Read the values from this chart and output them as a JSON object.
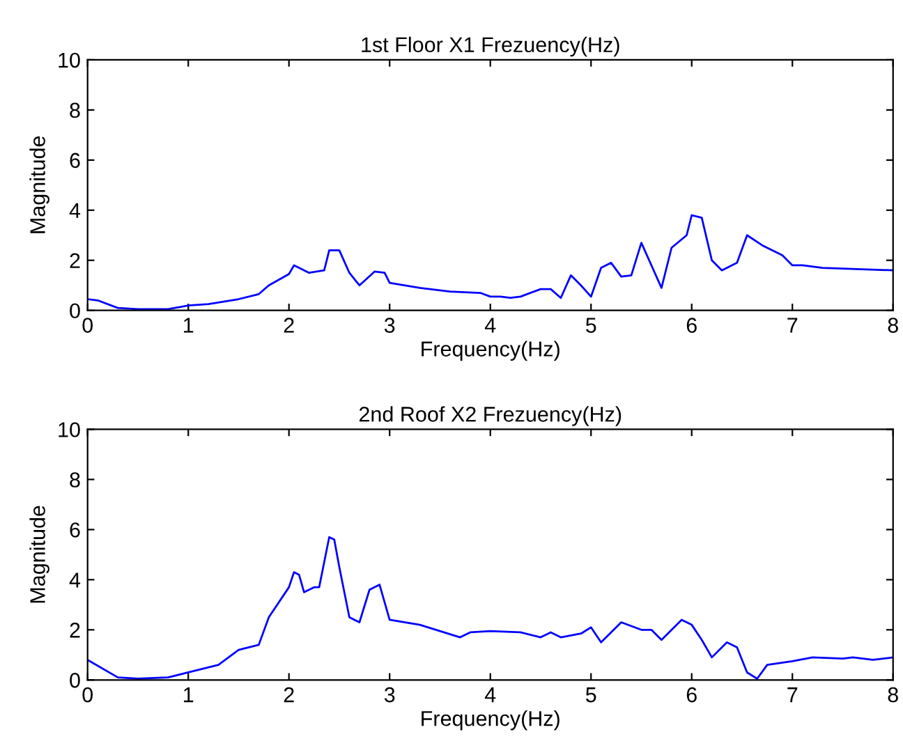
{
  "chart_data": [
    {
      "type": "line",
      "title": "1st Floor X1 Frezuency(Hz)",
      "xlabel": "Frequency(Hz)",
      "ylabel": "Magnitude",
      "xlim": [
        0,
        8
      ],
      "ylim": [
        0,
        10
      ],
      "xticks": [
        0,
        1,
        2,
        3,
        4,
        5,
        6,
        7,
        8
      ],
      "yticks": [
        0,
        2,
        4,
        6,
        8,
        10
      ],
      "grid": false,
      "series": [
        {
          "color": "#0000ff",
          "x": [
            0,
            0.1,
            0.3,
            0.5,
            0.8,
            1.0,
            1.2,
            1.5,
            1.7,
            1.8,
            2.0,
            2.05,
            2.1,
            2.2,
            2.35,
            2.4,
            2.5,
            2.6,
            2.7,
            2.85,
            2.95,
            3.0,
            3.3,
            3.6,
            3.9,
            4.0,
            4.1,
            4.2,
            4.3,
            4.5,
            4.6,
            4.7,
            4.8,
            4.9,
            5.0,
            5.1,
            5.2,
            5.3,
            5.4,
            5.5,
            5.6,
            5.7,
            5.8,
            5.95,
            6.0,
            6.1,
            6.2,
            6.3,
            6.45,
            6.55,
            6.7,
            6.9,
            7.0,
            7.1,
            7.3,
            8.0
          ],
          "values": [
            0.45,
            0.4,
            0.1,
            0.05,
            0.05,
            0.2,
            0.25,
            0.45,
            0.65,
            1.0,
            1.45,
            1.8,
            1.7,
            1.5,
            1.6,
            2.4,
            2.4,
            1.5,
            1.0,
            1.55,
            1.5,
            1.1,
            0.9,
            0.75,
            0.7,
            0.55,
            0.55,
            0.5,
            0.55,
            0.85,
            0.85,
            0.5,
            1.4,
            1.0,
            0.55,
            1.7,
            1.9,
            1.35,
            1.4,
            2.7,
            1.8,
            0.9,
            2.5,
            3.0,
            3.8,
            3.7,
            2.0,
            1.6,
            1.9,
            3.0,
            2.6,
            2.2,
            1.8,
            1.8,
            1.7,
            1.6
          ]
        }
      ]
    },
    {
      "type": "line",
      "title": "2nd Roof X2 Frezuency(Hz)",
      "xlabel": "Frequency(Hz)",
      "ylabel": "Magnitude",
      "xlim": [
        0,
        8
      ],
      "ylim": [
        0,
        10
      ],
      "xticks": [
        0,
        1,
        2,
        3,
        4,
        5,
        6,
        7,
        8
      ],
      "yticks": [
        0,
        2,
        4,
        6,
        8,
        10
      ],
      "grid": false,
      "series": [
        {
          "color": "#0000ff",
          "x": [
            0,
            0.3,
            0.5,
            0.8,
            1.0,
            1.3,
            1.5,
            1.7,
            1.8,
            2.0,
            2.05,
            2.1,
            2.15,
            2.25,
            2.3,
            2.4,
            2.45,
            2.5,
            2.6,
            2.7,
            2.8,
            2.9,
            3.0,
            3.3,
            3.5,
            3.7,
            3.8,
            4.0,
            4.3,
            4.5,
            4.6,
            4.7,
            4.9,
            5.0,
            5.1,
            5.3,
            5.5,
            5.6,
            5.7,
            5.9,
            6.0,
            6.1,
            6.2,
            6.35,
            6.45,
            6.55,
            6.65,
            6.75,
            7.0,
            7.2,
            7.5,
            7.6,
            7.8,
            8.0
          ],
          "values": [
            0.8,
            0.1,
            0.05,
            0.1,
            0.3,
            0.6,
            1.2,
            1.4,
            2.5,
            3.7,
            4.3,
            4.2,
            3.5,
            3.7,
            3.7,
            5.7,
            5.6,
            4.5,
            2.5,
            2.3,
            3.6,
            3.8,
            2.4,
            2.2,
            1.95,
            1.7,
            1.9,
            1.95,
            1.9,
            1.7,
            1.9,
            1.7,
            1.85,
            2.1,
            1.5,
            2.3,
            2.0,
            2.0,
            1.6,
            2.4,
            2.2,
            1.6,
            0.9,
            1.5,
            1.3,
            0.3,
            0.05,
            0.6,
            0.75,
            0.9,
            0.85,
            0.9,
            0.8,
            0.9
          ]
        }
      ]
    }
  ]
}
